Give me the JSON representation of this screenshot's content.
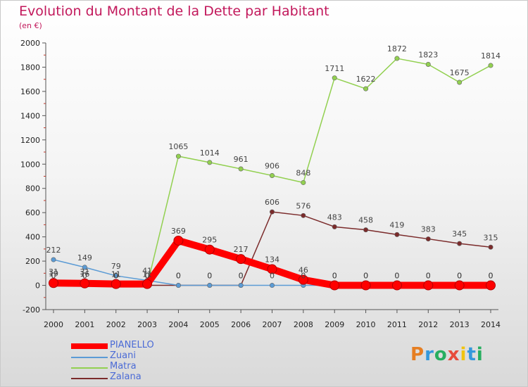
{
  "header": {
    "title": "Evolution du Montant de la Dette par Habitant",
    "unit": "(en €)"
  },
  "logo": {
    "text": "Proxiti"
  },
  "colors": {
    "PIANELLO": "#ff0000",
    "Zuani": "#5b9bd5",
    "Matra": "#92d050",
    "Zalana": "#7b2b2b"
  },
  "chart_data": {
    "type": "line",
    "x": [
      "2000",
      "2001",
      "2002",
      "2003",
      "2004",
      "2005",
      "2006",
      "2007",
      "2008",
      "2009",
      "2010",
      "2011",
      "2012",
      "2013",
      "2014"
    ],
    "ylim": [
      -200,
      2000
    ],
    "yticks": [
      -200,
      0,
      200,
      400,
      600,
      800,
      1000,
      1200,
      1400,
      1600,
      1800,
      2000
    ],
    "grid": false,
    "legend_position": "bottom-left",
    "series": [
      {
        "name": "PIANELLO",
        "values": [
          19,
          16,
          11,
          11,
          369,
          295,
          217,
          134,
          46,
          0,
          0,
          0,
          0,
          0,
          0
        ]
      },
      {
        "name": "Zuani",
        "values": [
          212,
          149,
          79,
          41,
          0,
          0,
          0,
          0,
          0,
          0,
          0,
          0,
          0,
          0,
          0
        ]
      },
      {
        "name": "Matra",
        "values": [
          0,
          0,
          0,
          0,
          1065,
          1014,
          961,
          906,
          848,
          1711,
          1622,
          1872,
          1823,
          1675,
          1814
        ]
      },
      {
        "name": "Zalana",
        "values": [
          31,
          31,
          0,
          0,
          0,
          0,
          0,
          606,
          576,
          483,
          458,
          419,
          383,
          345,
          315
        ]
      }
    ]
  }
}
